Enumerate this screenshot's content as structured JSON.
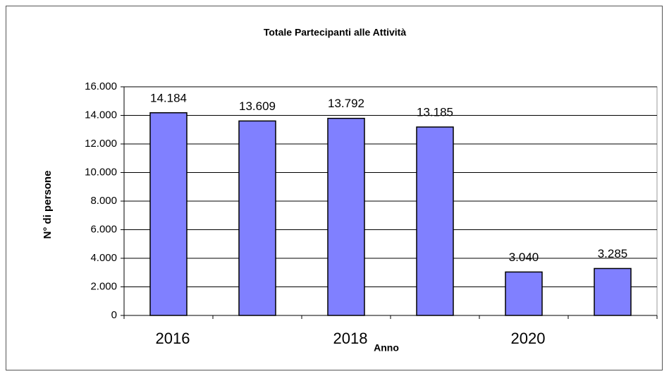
{
  "chart_data": {
    "type": "bar",
    "title": "Totale Partecipanti alle Attività",
    "xlabel": "Anno",
    "ylabel": "N° di persone",
    "categories": [
      "2016",
      null,
      "2018",
      null,
      "2020",
      null
    ],
    "values": [
      14184,
      13609,
      13792,
      13185,
      3040,
      3285
    ],
    "value_labels": [
      "14.184",
      "13.609",
      "13.792",
      "13.185",
      "3.040",
      "3.285"
    ],
    "color": "#8080ff",
    "ylim": [
      0,
      16000
    ],
    "yticks": [
      0,
      {
        "value": 2000,
        "label": "2.000"
      },
      {
        "value": 4000,
        "label": "4.000"
      },
      {
        "value": 6000,
        "label": "6.000"
      },
      {
        "value": 8000,
        "label": "8.000"
      },
      {
        "value": 10000,
        "label": "10.000"
      },
      {
        "value": 12000,
        "label": "12.000"
      },
      {
        "value": 14000,
        "label": "14.000"
      },
      {
        "value": 16000,
        "label": "16.000"
      }
    ],
    "grid": true
  }
}
